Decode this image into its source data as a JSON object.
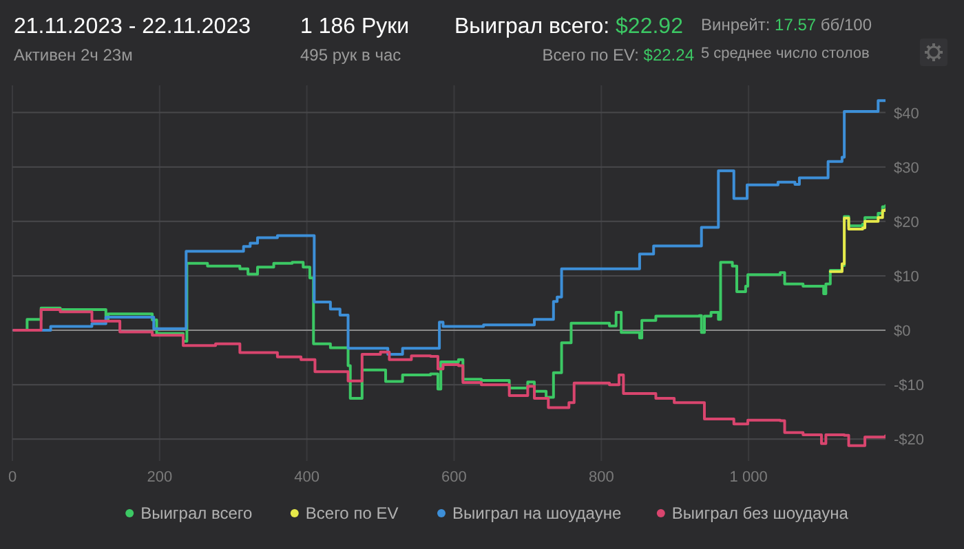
{
  "chart_data": {
    "type": "step",
    "title": "21.11.2023 - 22.11.2023",
    "subtitle": "Активен 2ч 23м",
    "annotations": [
      "1 186 Руки",
      "495 рук в час",
      "Выиграл всего:",
      "$22.92",
      "Всего по EV:",
      "$22.24",
      "Винрейт:",
      "17.57",
      "бб/100",
      "5 среднее число столов"
    ],
    "xlim": [
      0,
      1186
    ],
    "ylim": [
      -24,
      45
    ],
    "xticks": [
      0,
      200,
      400,
      600,
      800,
      {
        "value": 1000,
        "label": "1 000"
      }
    ],
    "yticks": [
      {
        "value": -20,
        "label": "-$20"
      },
      {
        "value": -10,
        "label": "-$10"
      },
      {
        "value": 0,
        "label": "$0"
      },
      {
        "value": 10,
        "label": "$10"
      },
      {
        "value": 20,
        "label": "$20"
      },
      {
        "value": 30,
        "label": "$30"
      },
      {
        "value": 40,
        "label": "$40"
      }
    ],
    "grid": true,
    "legend": "bottom",
    "series": [
      {
        "name": "Выиграл всего",
        "color": "#3cc864",
        "x": [
          2,
          20,
          39,
          65,
          127,
          130,
          190,
          196,
          232,
          237,
          265,
          309,
          320,
          333,
          355,
          380,
          395,
          404,
          409,
          432,
          456,
          459,
          469,
          475,
          507,
          530,
          568,
          578,
          582,
          606,
          612,
          637,
          675,
          700,
          709,
          725,
          735,
          746,
          759,
          811,
          820,
          827,
          852,
          855,
          874,
          933,
          936,
          940,
          949,
          959,
          962,
          978,
          984,
          996,
          999,
          1043,
          1049,
          1074,
          1102,
          1105,
          1111,
          1127,
          1130,
          1136,
          1155,
          1158,
          1176,
          1182,
          1186
        ],
        "values": [
          0,
          2.0,
          4.1,
          3.8,
          1.9,
          3.0,
          1.9,
          -0.6,
          -2.0,
          12.3,
          11.8,
          11.3,
          10.3,
          11.6,
          12.3,
          12.5,
          11.6,
          9.6,
          -2.5,
          -3.2,
          -6.5,
          -12.5,
          -12.5,
          -7.3,
          -9.4,
          -8.2,
          -8.0,
          -10.8,
          -5.8,
          -5.4,
          -9.0,
          -9.2,
          -10.6,
          -9.5,
          -11.2,
          -12.3,
          -7.8,
          -2.3,
          1.3,
          0.8,
          3.3,
          -0.4,
          -1.4,
          1.8,
          2.6,
          2.7,
          -0.4,
          2.6,
          3.3,
          2.0,
          12.5,
          11.8,
          7.1,
          8.1,
          10.2,
          10.6,
          8.5,
          8.1,
          6.7,
          8.5,
          11.0,
          11.9,
          20.9,
          19.2,
          19.5,
          20.7,
          21.5,
          22.7,
          22.9
        ]
      },
      {
        "name": "Всего по EV",
        "color": "#e6e84a",
        "x": [
          1111,
          1127,
          1130,
          1136,
          1155,
          1158,
          1176,
          1182,
          1186
        ],
        "values": [
          10.8,
          12.2,
          20.6,
          18.6,
          18.8,
          20.0,
          20.7,
          22.0,
          22.2
        ]
      },
      {
        "name": "Выиграл на шоудауне",
        "color": "#3d8fd8",
        "x": [
          2,
          52,
          108,
          127,
          192,
          236,
          314,
          323,
          333,
          360,
          410,
          432,
          445,
          456,
          510,
          530,
          580,
          585,
          640,
          709,
          735,
          740,
          746,
          852,
          871,
          936,
          959,
          980,
          998,
          1040,
          1063,
          1069,
          1108,
          1127,
          1130,
          1176,
          1186
        ],
        "values": [
          0,
          0.7,
          1.2,
          2.4,
          0.3,
          14.5,
          15.4,
          16.0,
          17.0,
          17.4,
          5.2,
          3.9,
          2.8,
          -3.3,
          -4.4,
          -3.3,
          1.5,
          0.7,
          1.0,
          2.0,
          5.3,
          6.1,
          11.3,
          14.0,
          15.5,
          18.9,
          29.3,
          24.2,
          26.7,
          27.2,
          26.8,
          28.0,
          31.0,
          31.8,
          40.2,
          42.2,
          42.2
        ]
      },
      {
        "name": "Выиграл без шоудауна",
        "color": "#d9456e",
        "x": [
          2,
          39,
          65,
          108,
          146,
          190,
          232,
          276,
          309,
          360,
          392,
          411,
          456,
          469,
          475,
          500,
          512,
          542,
          568,
          578,
          585,
          606,
          612,
          637,
          675,
          700,
          709,
          728,
          756,
          763,
          811,
          824,
          830,
          874,
          899,
          933,
          940,
          980,
          999,
          1043,
          1049,
          1074,
          1099,
          1105,
          1130,
          1136,
          1158,
          1186
        ],
        "values": [
          0,
          3.8,
          3.4,
          1.7,
          -0.3,
          -0.9,
          -2.8,
          -2.5,
          -4.1,
          -4.9,
          -5.4,
          -7.6,
          -9.3,
          -9.3,
          -4.4,
          -4.0,
          -5.4,
          -4.7,
          -4.8,
          -7.1,
          -6.3,
          -6.5,
          -9.6,
          -10.0,
          -12.0,
          -10.3,
          -12.5,
          -14.2,
          -13.3,
          -9.7,
          -10.0,
          -8.2,
          -11.6,
          -12.5,
          -13.3,
          -13.3,
          -16.3,
          -17.2,
          -16.5,
          -16.6,
          -18.8,
          -19.2,
          -20.8,
          -19.2,
          -19.3,
          -21.2,
          -19.6,
          -19.4
        ]
      }
    ]
  }
}
